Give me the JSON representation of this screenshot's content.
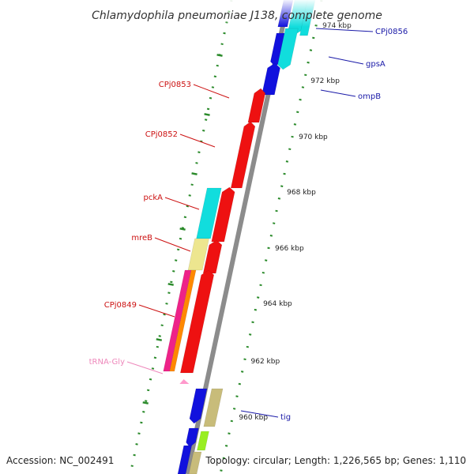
{
  "title": "Chlamydophila pneumoniae J138, complete genome",
  "footer": {
    "accession": "Accession: NC_002491",
    "topology": "Topology: circular; Length: 1,226,565 bp; Genes: 1,110"
  },
  "ticks": [
    {
      "label": "974 kbp",
      "kbp": 974
    },
    {
      "label": "972 kbp",
      "kbp": 972
    },
    {
      "label": "970 kbp",
      "kbp": 970
    },
    {
      "label": "968 kbp",
      "kbp": 968
    },
    {
      "label": "966 kbp",
      "kbp": 966
    },
    {
      "label": "964 kbp",
      "kbp": 964
    },
    {
      "label": "962 kbp",
      "kbp": 962
    },
    {
      "label": "960 kbp",
      "kbp": 960
    }
  ],
  "gene_labels": [
    {
      "name": "CPj0856",
      "side": "right",
      "color": "#1a1aa8"
    },
    {
      "name": "gpsA",
      "side": "right",
      "color": "#1a1aa8"
    },
    {
      "name": "ompB",
      "side": "right",
      "color": "#1a1aa8"
    },
    {
      "name": "CPj0853",
      "side": "left",
      "color": "#cc1111"
    },
    {
      "name": "CPj0852",
      "side": "left",
      "color": "#cc1111"
    },
    {
      "name": "pckA",
      "side": "left",
      "color": "#cc1111"
    },
    {
      "name": "mreB",
      "side": "left",
      "color": "#cc1111"
    },
    {
      "name": "CPj0849",
      "side": "left",
      "color": "#cc1111"
    },
    {
      "name": "tRNA-Gly",
      "side": "left",
      "color": "#ee88bb"
    },
    {
      "name": "tig",
      "side": "right",
      "color": "#1a1aa8"
    }
  ],
  "colors": {
    "backbone": "#8c8c8c",
    "tick_dots": "#2a8a2a",
    "red": "#ee1111",
    "blue": "#1111dd",
    "cyan": "#11dddd",
    "khaki": "#ede68f",
    "magenta": "#ee2288",
    "orange": "#ff8800",
    "tan": "#c8bc7a",
    "lime": "#99ee22",
    "pink": "#ff99cc"
  }
}
